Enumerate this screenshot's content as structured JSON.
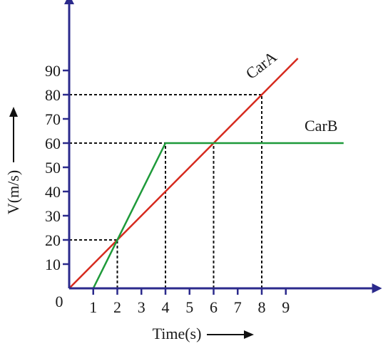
{
  "chart_data": {
    "type": "line",
    "xlabel": "Time(s)",
    "ylabel": "V(m/s)",
    "origin_label": "0",
    "xlim": [
      0,
      12.7
    ],
    "ylim": [
      0,
      120
    ],
    "x_ticks": [
      1,
      2,
      3,
      4,
      5,
      6,
      7,
      8,
      9
    ],
    "y_ticks": [
      10,
      20,
      30,
      40,
      50,
      60,
      70,
      80,
      90
    ],
    "series": [
      {
        "name": "CarA",
        "color": "#d62a1e",
        "x": [
          0,
          9.5
        ],
        "y": [
          0,
          95
        ]
      },
      {
        "name": "CarB",
        "color": "#1e9a3a",
        "x": [
          1,
          4,
          11.4
        ],
        "y": [
          0,
          60,
          60
        ]
      }
    ],
    "guides": [
      {
        "x": 2,
        "y": 20
      },
      {
        "x": 4,
        "y": 60
      },
      {
        "x": 6,
        "y": 60
      },
      {
        "x": 8,
        "y": 80
      }
    ],
    "axis_color": "#2b2a8c"
  }
}
